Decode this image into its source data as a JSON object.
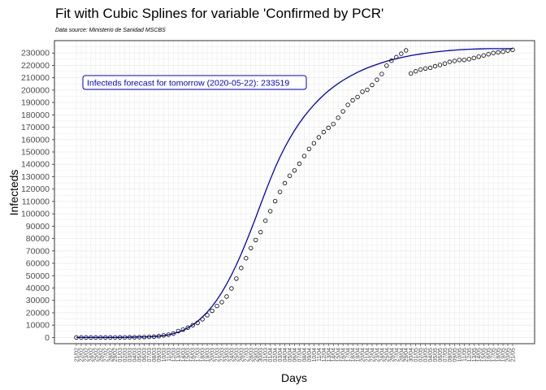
{
  "chart_data": {
    "type": "scatter",
    "title": "Fit with Cubic Splines for variable 'Confirmed by PCR'",
    "subtitle": "Data source: Ministerio de Sanidad MSCBS",
    "xlabel": "Days",
    "ylabel": "Infecteds",
    "ylim": [
      -5000,
      240000
    ],
    "yticks": [
      0,
      10000,
      20000,
      30000,
      40000,
      50000,
      60000,
      70000,
      80000,
      90000,
      100000,
      110000,
      120000,
      130000,
      140000,
      150000,
      160000,
      170000,
      180000,
      190000,
      200000,
      210000,
      220000,
      230000
    ],
    "grid": true,
    "annotation": "Infecteds forecast for tomorrow (2020-05-22): 233519",
    "colors": {
      "points": "#000000",
      "fit": "#0000cc",
      "annotation": "#0000cc",
      "grid": "#ebebeb"
    },
    "x": [
      "21/02",
      "22/02",
      "23/02",
      "24/02",
      "25/02",
      "26/02",
      "27/02",
      "28/02",
      "29/02",
      "01/03",
      "02/03",
      "03/03",
      "04/03",
      "05/03",
      "06/03",
      "07/03",
      "08/03",
      "09/03",
      "10/03",
      "11/03",
      "12/03",
      "13/03",
      "14/03",
      "15/03",
      "16/03",
      "17/03",
      "18/03",
      "19/03",
      "20/03",
      "21/03",
      "22/03",
      "23/03",
      "24/03",
      "25/03",
      "26/03",
      "27/03",
      "28/03",
      "29/03",
      "30/03",
      "31/03",
      "01/04",
      "02/04",
      "03/04",
      "04/04",
      "05/04",
      "06/04",
      "07/04",
      "08/04",
      "09/04",
      "10/04",
      "11/04",
      "12/04",
      "13/04",
      "14/04",
      "15/04",
      "16/04",
      "17/04",
      "18/04",
      "19/04",
      "20/04",
      "21/04",
      "22/04",
      "23/04",
      "24/04",
      "25/04",
      "26/04",
      "27/04",
      "28/04",
      "29/04",
      "30/04",
      "01/05",
      "02/05",
      "03/05",
      "04/05",
      "05/05",
      "06/05",
      "07/05",
      "08/05",
      "09/05",
      "10/05",
      "11/05",
      "12/05",
      "13/05",
      "14/05",
      "15/05",
      "16/05",
      "17/05",
      "18/05",
      "19/05",
      "20/05",
      "21/05"
    ],
    "series": [
      {
        "role": "points",
        "values": [
          2,
          2,
          2,
          2,
          6,
          13,
          15,
          32,
          45,
          84,
          120,
          165,
          222,
          259,
          400,
          500,
          673,
          1073,
          1695,
          2277,
          3146,
          5232,
          6391,
          7988,
          9942,
          11826,
          14769,
          18077,
          21571,
          25496,
          28572,
          33089,
          39673,
          47610,
          56188,
          64059,
          72248,
          78797,
          85195,
          94417,
          102136,
          110238,
          117710,
          124736,
          130759,
          135032,
          140510,
          146690,
          152446,
          157022,
          161852,
          166019,
          169496,
          172541,
          177633,
          182816,
          188068,
          191726,
          194416,
          198674,
          200210,
          204178,
          208389,
          213024,
          219764,
          223759,
          226629,
          229422,
          232128,
          213435,
          215216,
          216582,
          217466,
          218011,
          219329,
          220325,
          221447,
          222857,
          223578,
          224350,
          224390,
          225000,
          226000,
          227000,
          228000,
          229000,
          230000,
          230500,
          231000,
          232000,
          232555
        ]
      },
      {
        "role": "fit",
        "values": [
          0,
          0,
          0,
          0,
          0,
          0,
          0,
          0,
          0,
          50,
          100,
          200,
          300,
          400,
          500,
          600,
          800,
          1100,
          1600,
          2200,
          3100,
          4300,
          5800,
          7800,
          10200,
          13100,
          16600,
          20600,
          25200,
          30500,
          36500,
          43200,
          50600,
          58700,
          67500,
          76900,
          86800,
          97000,
          107500,
          117800,
          127800,
          137300,
          145900,
          153800,
          160900,
          167400,
          173300,
          178700,
          183600,
          188100,
          192200,
          196000,
          199400,
          202500,
          205300,
          207900,
          210200,
          212400,
          214400,
          216200,
          217900,
          219400,
          220800,
          222100,
          223300,
          224400,
          225400,
          226300,
          227100,
          227900,
          228600,
          229200,
          229800,
          230300,
          230800,
          231200,
          231600,
          232000,
          232300,
          232600,
          232800,
          233000,
          233200,
          233300,
          233400,
          233500,
          233500,
          233500,
          233500,
          233500,
          233519
        ]
      }
    ]
  }
}
